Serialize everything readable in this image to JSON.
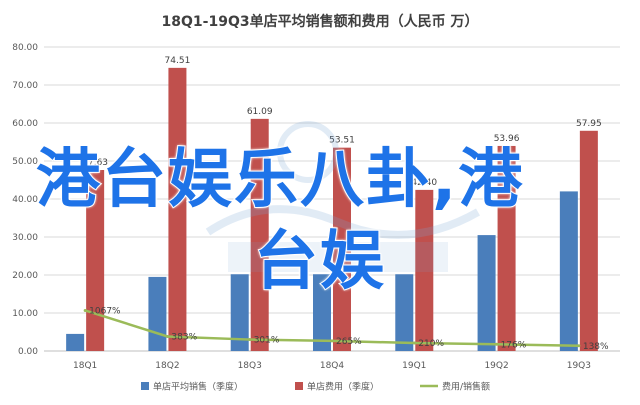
{
  "chart_data": {
    "type": "bar",
    "title": "18Q1-19Q3单店平均销售额和费用（人民币 万）",
    "categories": [
      "18Q1",
      "18Q2",
      "18Q3",
      "18Q4",
      "19Q1",
      "19Q2",
      "19Q3"
    ],
    "ylim": [
      0,
      80
    ],
    "yticks": [
      "0.00",
      "10.00",
      "20.00",
      "30.00",
      "40.00",
      "50.00",
      "60.00",
      "70.00",
      "80.00"
    ],
    "series": [
      {
        "name": "单店平均销售（季度）",
        "kind": "bar",
        "color": "#4a7ebb",
        "values": [
          4.5,
          19.5,
          20.2,
          20.2,
          20.2,
          30.5,
          42.0
        ],
        "labels": [
          "",
          "",
          "",
          "",
          "",
          "",
          ""
        ]
      },
      {
        "name": "单店费用（季度）",
        "kind": "bar",
        "color": "#c0504d",
        "values": [
          47.63,
          74.51,
          61.09,
          53.51,
          42.4,
          53.96,
          57.95
        ],
        "labels": [
          "47.63",
          "74.51",
          "61.09",
          "53.51",
          "42.40",
          "53.96",
          "57.95"
        ]
      },
      {
        "name": "费用/销售额",
        "kind": "line",
        "color": "#9bbb59",
        "values": [
          10.67,
          3.83,
          3.01,
          2.65,
          2.1,
          1.76,
          1.38
        ],
        "labels": [
          "1067%",
          "383%",
          "301%",
          "265%",
          "210%",
          "176%",
          "138%"
        ]
      }
    ],
    "grid": true,
    "legend_position": "bottom"
  },
  "overlay": {
    "line1": "港台娱乐八卦,港",
    "line2": "台娱"
  }
}
